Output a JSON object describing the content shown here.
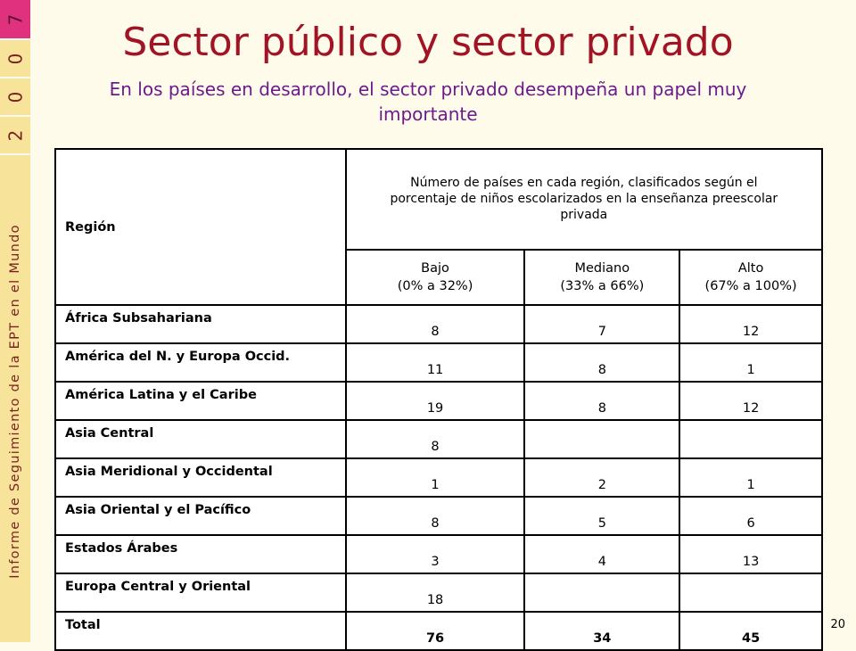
{
  "sidebar": {
    "year_digits": [
      "7",
      "0",
      "0",
      "2"
    ],
    "report_title": "Informe de Seguimiento de la EPT en el Mundo"
  },
  "title": "Sector público y sector privado",
  "subtitle": "En los países en desarrollo, el sector privado desempeña un papel muy importante",
  "table": {
    "region_header": "Región",
    "group_header": "Número de países en cada región, clasificados según el porcentaje de niños escolarizados en la enseñanza preescolar privada",
    "columns": [
      {
        "label": "Bajo",
        "range": "(0% a 32%)"
      },
      {
        "label": "Mediano",
        "range": "(33% a 66%)"
      },
      {
        "label": "Alto",
        "range": "(67% a 100%)"
      }
    ],
    "rows": [
      {
        "region": "África Subsahariana",
        "bajo": "8",
        "mediano": "7",
        "alto": "12"
      },
      {
        "region": "América del N. y Europa Occid.",
        "bajo": "11",
        "mediano": "8",
        "alto": "1"
      },
      {
        "region": "América Latina y el Caribe",
        "bajo": "19",
        "mediano": "8",
        "alto": "12"
      },
      {
        "region": "Asia Central",
        "bajo": "8",
        "mediano": "",
        "alto": ""
      },
      {
        "region": "Asia Meridional y Occidental",
        "bajo": "1",
        "mediano": "2",
        "alto": "1"
      },
      {
        "region": "Asia Oriental y el Pacífico",
        "bajo": "8",
        "mediano": "5",
        "alto": "6"
      },
      {
        "region": "Estados Árabes",
        "bajo": "3",
        "mediano": "4",
        "alto": "13"
      },
      {
        "region": "Europa Central y Oriental",
        "bajo": "18",
        "mediano": "",
        "alto": ""
      }
    ],
    "total": {
      "region": "Total",
      "bajo": "76",
      "mediano": "34",
      "alto": "45"
    }
  },
  "page_number": "20",
  "colors": {
    "background": "#fffbea",
    "sidebar": "#f7e39a",
    "sidebar_accent": "#e0317e",
    "title": "#a11425",
    "subtitle": "#6c1a8c"
  }
}
